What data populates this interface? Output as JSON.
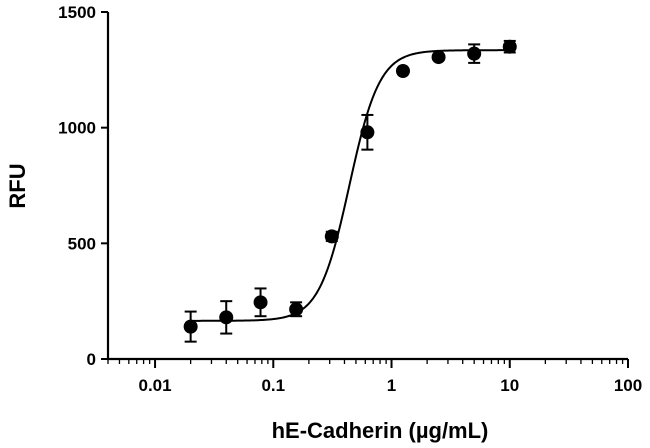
{
  "chart_data": {
    "type": "scatter",
    "title": "",
    "xlabel": "hE-Cadherin (µg/mL)",
    "ylabel": "RFU",
    "x_scale": "log",
    "xlim": [
      0.004,
      100
    ],
    "ylim": [
      0,
      1500
    ],
    "x_ticks": [
      0.01,
      0.1,
      1,
      10,
      100
    ],
    "x_tick_labels": [
      "0.01",
      "0.1",
      "1",
      "10",
      "100"
    ],
    "y_ticks": [
      0,
      500,
      1000,
      1500
    ],
    "y_tick_labels": [
      "0",
      "500",
      "1000",
      "1500"
    ],
    "grid": false,
    "legend": "none",
    "series": [
      {
        "x": [
          0.02,
          0.04,
          0.078,
          0.156,
          0.3125,
          0.625,
          1.25,
          2.5,
          5,
          10
        ],
        "y": [
          140,
          180,
          245,
          215,
          530,
          980,
          1245,
          1305,
          1320,
          1350
        ],
        "error": [
          65,
          70,
          60,
          30,
          20,
          75,
          10,
          10,
          40,
          25
        ]
      }
    ],
    "fit": {
      "model": "four-parameter logistic",
      "bottom": 165,
      "top": 1335,
      "ec50": 0.44,
      "hill": 3.4
    }
  }
}
